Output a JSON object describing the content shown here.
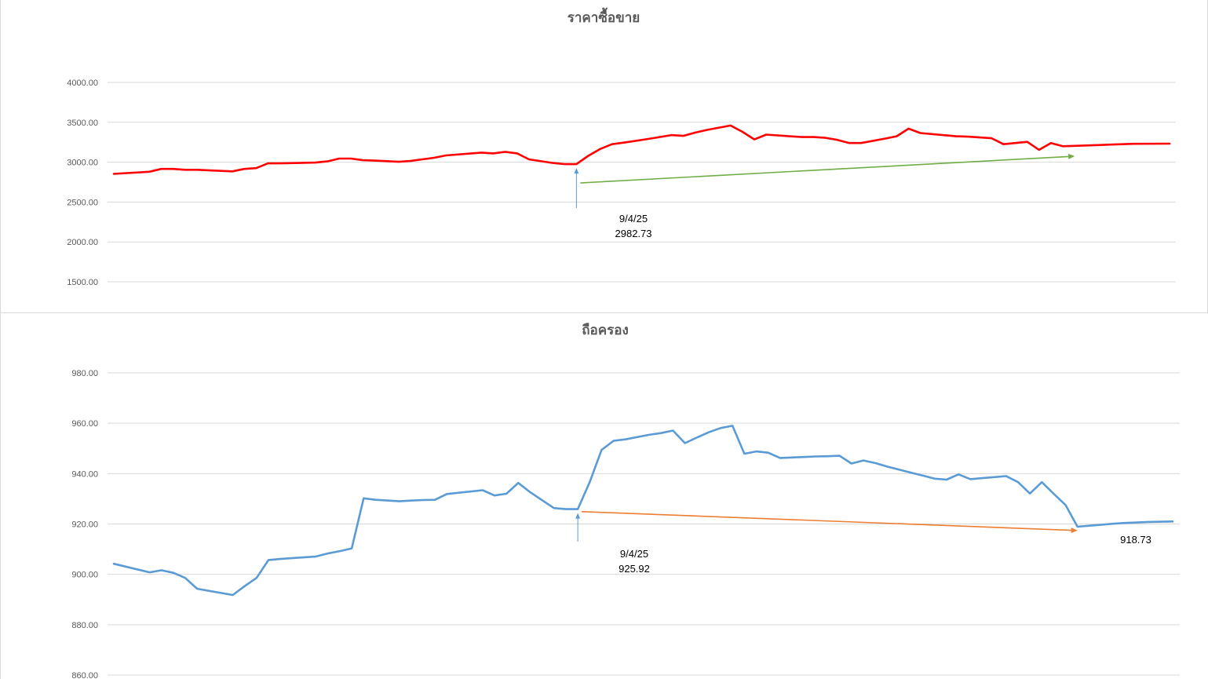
{
  "colors": {
    "price_line": "#ff0000",
    "price_trend": "#70ad47",
    "holding_line": "#5b9bd5",
    "holding_trend": "#ed7d31",
    "annotation_arrow": "#5b9bd5",
    "grid": "#d9d9d9",
    "axis_text": "#595959"
  },
  "chart_data": [
    {
      "type": "line",
      "title": "ราคาซื้อขาย",
      "xlabel": "",
      "ylabel": "",
      "ylim": [
        1500,
        4000
      ],
      "ytick_labels": [
        "4000.00",
        "3500.00",
        "3000.00",
        "2500.00",
        "2000.00",
        "1500.00"
      ],
      "ytick_values": [
        4000,
        3500,
        3000,
        2500,
        2000,
        1500
      ],
      "grid": true,
      "legend": "none",
      "series": [
        {
          "color": "#ff0000",
          "x": [
            0,
            3,
            4,
            5,
            6,
            7,
            10,
            11,
            12,
            13,
            14,
            17,
            18,
            19,
            20,
            21,
            22,
            24,
            25,
            26,
            27,
            28,
            31,
            32,
            33,
            34,
            35,
            37,
            38,
            39,
            40,
            41,
            42,
            43,
            45,
            46,
            47,
            48,
            49,
            50,
            52,
            53,
            54,
            55,
            58,
            59,
            60,
            61,
            62,
            63,
            65,
            66,
            67,
            68,
            71,
            72,
            73,
            74,
            75,
            77,
            78,
            79,
            80,
            81,
            82,
            83,
            84,
            85,
            86,
            89
          ],
          "y": [
            2853,
            2880,
            2915,
            2915,
            2905,
            2905,
            2885,
            2915,
            2925,
            2985,
            2985,
            2995,
            3010,
            3045,
            3045,
            3025,
            3020,
            3005,
            3015,
            3035,
            3055,
            3085,
            3120,
            3110,
            3130,
            3110,
            3035,
            2990,
            2975,
            2975,
            3080,
            3165,
            3225,
            3245,
            3290,
            3315,
            3340,
            3330,
            3370,
            3405,
            3460,
            3380,
            3285,
            3345,
            3315,
            3315,
            3305,
            3280,
            3240,
            3240,
            3295,
            3325,
            3420,
            3365,
            3325,
            3320,
            3310,
            3300,
            3225,
            3255,
            3155,
            3240,
            3200,
            3205,
            3210,
            3215,
            3220,
            3225,
            3230,
            3232
          ]
        }
      ],
      "annotations": [
        {
          "label": "9/4/25",
          "value": "2982.73"
        }
      ],
      "trend_line": {
        "color": "#70ad47",
        "x": [
          39,
          81
        ],
        "y": [
          2740,
          3075
        ]
      }
    },
    {
      "type": "line",
      "title": "ถือครอง",
      "xlabel": "",
      "ylabel": "",
      "ylim": [
        860,
        980
      ],
      "ytick_labels": [
        "980.00",
        "960.00",
        "940.00",
        "920.00",
        "900.00",
        "880.00",
        "860.00"
      ],
      "ytick_values": [
        980,
        960,
        940,
        920,
        900,
        880,
        860
      ],
      "grid": true,
      "legend": "none",
      "series": [
        {
          "color": "#5b9bd5",
          "x": [
            0,
            3,
            4,
            5,
            6,
            7,
            10,
            11,
            12,
            13,
            14,
            17,
            18,
            19,
            20,
            21,
            22,
            24,
            25,
            26,
            27,
            28,
            31,
            32,
            33,
            34,
            35,
            37,
            38,
            39,
            40,
            41,
            42,
            43,
            45,
            46,
            47,
            48,
            49,
            50,
            51,
            52,
            53,
            54,
            55,
            56,
            57,
            58,
            59,
            60,
            61,
            62,
            63,
            64,
            65,
            66,
            67,
            68,
            69,
            70,
            71,
            72,
            73,
            74,
            75,
            76,
            77,
            78,
            79,
            80,
            81,
            82,
            83,
            84,
            85,
            86,
            87,
            89
          ],
          "y": [
            904.2,
            900.8,
            901.6,
            900.6,
            898.6,
            894.3,
            891.8,
            895.3,
            898.6,
            905.7,
            906.1,
            907.1,
            908.3,
            909.2,
            910.3,
            930.2,
            929.6,
            929.0,
            929.3,
            929.5,
            929.6,
            931.9,
            933.4,
            931.3,
            932.0,
            936.3,
            932.6,
            926.3,
            925.9,
            925.9,
            936.6,
            949.4,
            953.0,
            953.6,
            955.4,
            956.1,
            957.1,
            952.1,
            954.3,
            956.4,
            958.1,
            959.0,
            947.9,
            948.8,
            948.3,
            946.2,
            946.4,
            946.6,
            946.8,
            946.9,
            947.1,
            944.0,
            945.2,
            944.2,
            942.8,
            941.6,
            940.4,
            939.2,
            938.0,
            937.6,
            939.7,
            937.8,
            938.2,
            938.6,
            939.0,
            936.6,
            932.1,
            936.6,
            932.0,
            927.5,
            918.9,
            919.3,
            919.7,
            920.1,
            920.4,
            920.6,
            920.8,
            921.0
          ]
        }
      ],
      "annotations": [
        {
          "label": "9/4/25",
          "value": "925.92"
        },
        {
          "label": "",
          "value": "918.73"
        }
      ],
      "trend_line": {
        "color": "#ed7d31",
        "x": [
          39,
          81
        ],
        "y": [
          924.9,
          917.4
        ]
      }
    }
  ]
}
